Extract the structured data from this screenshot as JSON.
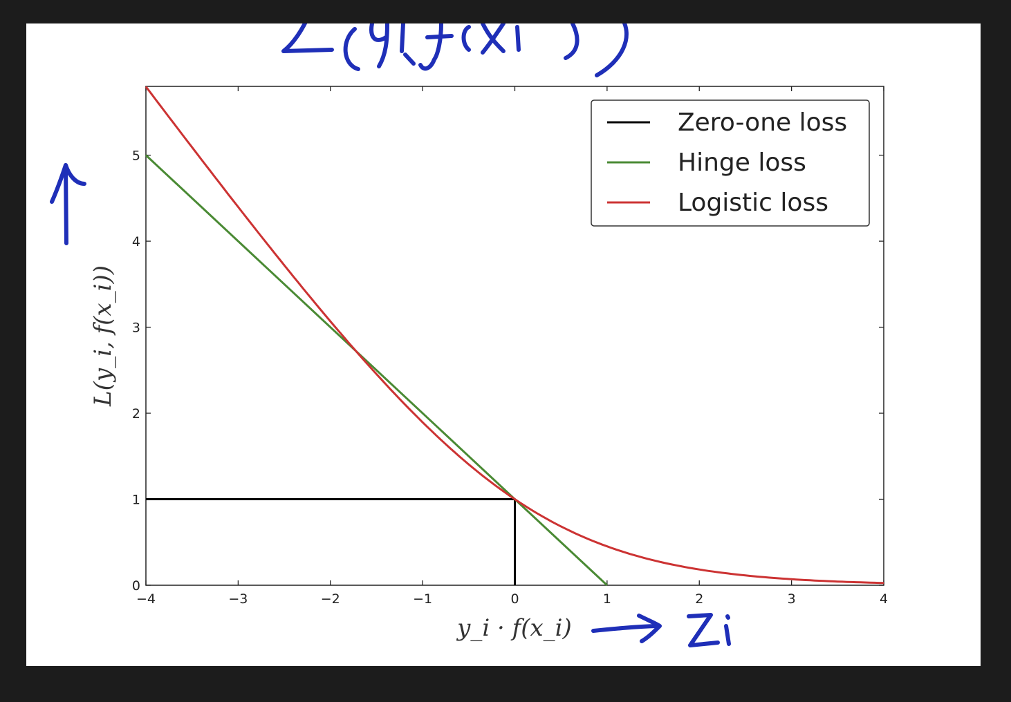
{
  "colors": {
    "zero_one": "#000000",
    "hinge": "#4a8a34",
    "logistic": "#cc3333",
    "ink": "#1f2fb8"
  },
  "chart_data": {
    "type": "line",
    "title": "",
    "xlabel": "y_i · f(x_i)",
    "ylabel": "L(y_i, f(x_i))",
    "xlim": [
      -4,
      4
    ],
    "ylim": [
      0,
      5.8
    ],
    "xticks": [
      "−4",
      "−3",
      "−2",
      "−1",
      "0",
      "1",
      "2",
      "3",
      "4"
    ],
    "xtick_values": [
      -4,
      -3,
      -2,
      -1,
      0,
      1,
      2,
      3,
      4
    ],
    "yticks": [
      "0",
      "1",
      "2",
      "3",
      "4",
      "5"
    ],
    "ytick_values": [
      0,
      1,
      2,
      3,
      4,
      5
    ],
    "grid": false,
    "legend_position": "top-right",
    "series": [
      {
        "name": "Zero-one loss",
        "color": "#000000",
        "x": [
          -4,
          0,
          0,
          0
        ],
        "y": [
          1,
          1,
          1,
          0
        ]
      },
      {
        "name": "Hinge loss",
        "color": "#4a8a34",
        "x": [
          -4,
          1
        ],
        "y": [
          5,
          0
        ]
      },
      {
        "name": "Logistic loss",
        "color": "#cc3333",
        "x": [
          -4,
          -3.5,
          -3,
          -2.5,
          -2,
          -1.5,
          -1,
          -0.5,
          0,
          0.5,
          1,
          1.5,
          2,
          2.5,
          3,
          3.5,
          4
        ],
        "y": [
          5.79,
          5.08,
          4.39,
          3.7,
          3.04,
          2.43,
          1.89,
          1.4,
          1.0,
          0.68,
          0.45,
          0.29,
          0.18,
          0.11,
          0.07,
          0.04,
          0.03
        ]
      }
    ]
  },
  "annotations": {
    "top_ink": "L(yi,f(xi))",
    "right_ink": "zi"
  }
}
